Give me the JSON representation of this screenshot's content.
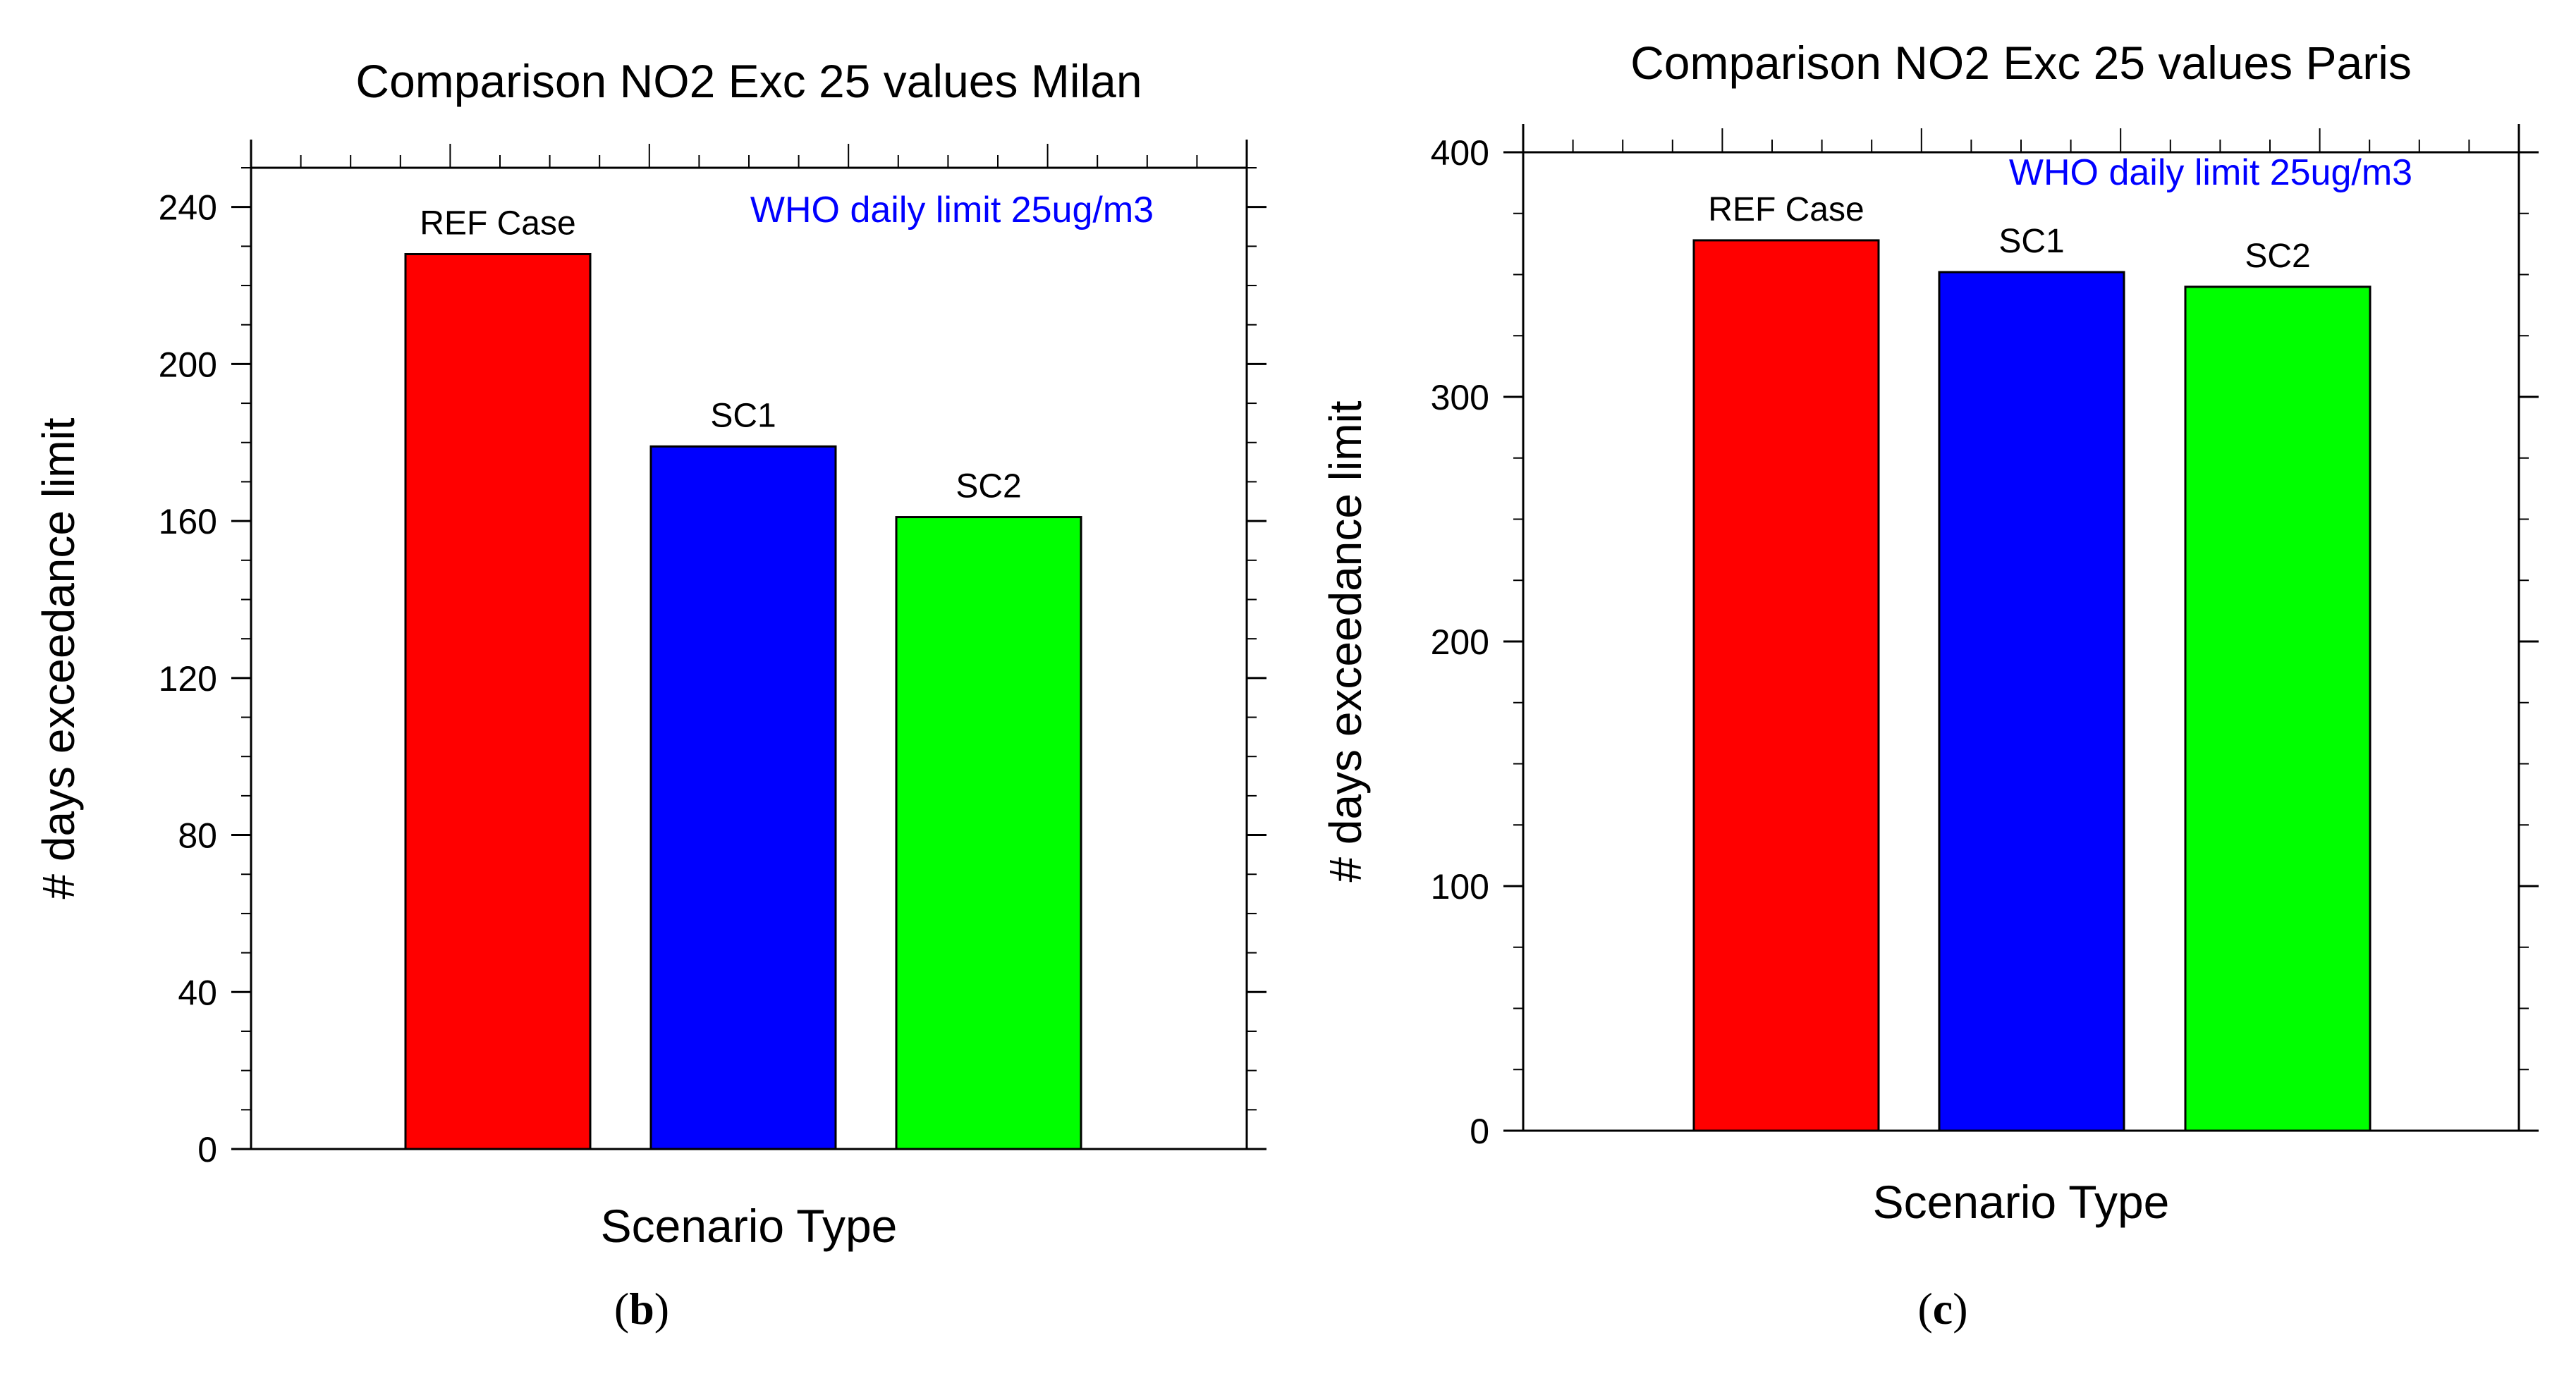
{
  "chart_data": [
    {
      "type": "bar",
      "panel": "b",
      "title": "Comparison NO2 Exc 25 values Milan",
      "xlabel": "Scenario Type",
      "ylabel": "# days exceedance limit",
      "categories": [
        "REF Case",
        "SC1",
        "SC2"
      ],
      "values": [
        228,
        179,
        161
      ],
      "bar_labels": [
        "REF Case",
        "SC1",
        "SC2"
      ],
      "colors": [
        "#ff0000",
        "#0000ff",
        "#00ff00"
      ],
      "ylim": [
        0,
        250
      ],
      "yticks": [
        0,
        40,
        80,
        120,
        160,
        200,
        240
      ],
      "ytick_labels": [
        "0",
        "40",
        "80",
        "120",
        "160",
        "200",
        "240"
      ],
      "annotation": "WHO daily limit 25ug/m3",
      "annotation_color": "#0000ff",
      "grid": false
    },
    {
      "type": "bar",
      "panel": "c",
      "title": "Comparison NO2 Exc 25 values Paris",
      "xlabel": "Scenario Type",
      "ylabel": "# days exceedance limit",
      "categories": [
        "REF Case",
        "SC1",
        "SC2"
      ],
      "values": [
        364,
        351,
        345
      ],
      "bar_labels": [
        "REF Case",
        "SC1",
        "SC2"
      ],
      "colors": [
        "#ff0000",
        "#0000ff",
        "#00ff00"
      ],
      "ylim": [
        0,
        400
      ],
      "yticks": [
        0,
        100,
        200,
        300,
        400
      ],
      "ytick_labels": [
        "0",
        "100",
        "200",
        "300",
        "400"
      ],
      "annotation": "WHO daily limit 25ug/m3",
      "annotation_color": "#0000ff",
      "grid": false
    }
  ],
  "panel_labels": [
    {
      "letter": "b",
      "open": "(",
      "close": ")"
    },
    {
      "letter": "c",
      "open": "(",
      "close": ")"
    }
  ]
}
